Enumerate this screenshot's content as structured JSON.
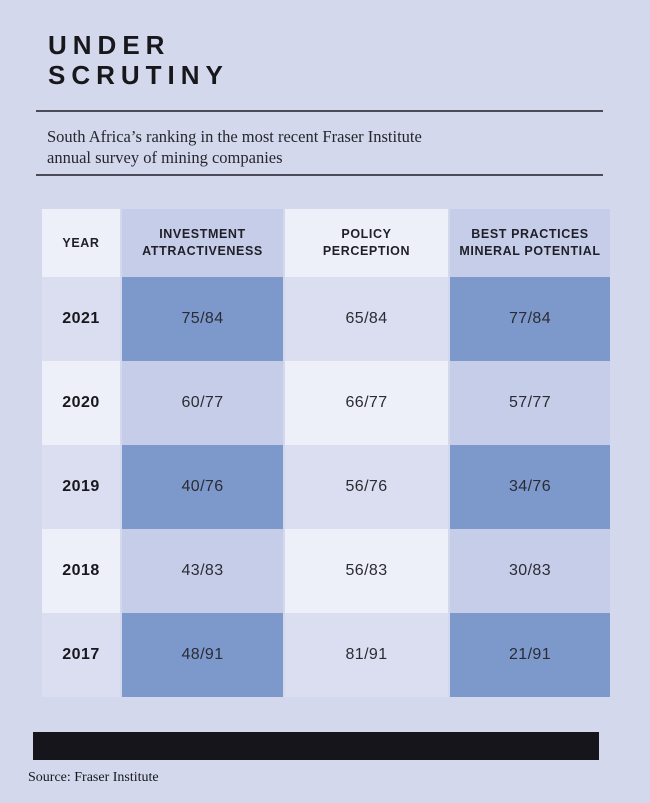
{
  "header": {
    "title_line1": "UNDER",
    "title_line2": "SCRUTINY",
    "subtitle_line1": "South Africa’s ranking in the most recent Fraser Institute",
    "subtitle_line2": "annual survey of mining companies"
  },
  "footer": {
    "source": "Source: Fraser Institute"
  },
  "colors": {
    "page_background": "#d4d8ec",
    "cell_blue": "#7d99cc",
    "cell_periwinkle": "#c6cde9",
    "cell_light": "#edeff9",
    "cell_lavender": "#dadef0",
    "footer_bar": "#15151b",
    "text_dark": "#17171c",
    "rule": "#4b4b59"
  },
  "chart_data": {
    "type": "table",
    "title": "UNDER SCRUTINY",
    "subtitle": "South Africa's ranking in the most recent Fraser Institute annual survey of mining companies",
    "source": "Fraser Institute",
    "columns": [
      {
        "label_line1": "YEAR",
        "label_line2": ""
      },
      {
        "label_line1": "INVESTMENT",
        "label_line2": "ATTRACTIVENESS"
      },
      {
        "label_line1": "POLICY",
        "label_line2": "PERCEPTION"
      },
      {
        "label_line1": "BEST PRACTICES",
        "label_line2": "MINERAL POTENTIAL"
      }
    ],
    "rows": [
      {
        "year": "2021",
        "values": [
          "75/84",
          "65/84",
          "77/84"
        ]
      },
      {
        "year": "2020",
        "values": [
          "60/77",
          "66/77",
          "57/77"
        ]
      },
      {
        "year": "2019",
        "values": [
          "40/76",
          "56/76",
          "34/76"
        ]
      },
      {
        "year": "2018",
        "values": [
          "43/83",
          "56/83",
          "30/83"
        ]
      },
      {
        "year": "2017",
        "values": [
          "48/91",
          "81/91",
          "21/91"
        ]
      }
    ]
  }
}
